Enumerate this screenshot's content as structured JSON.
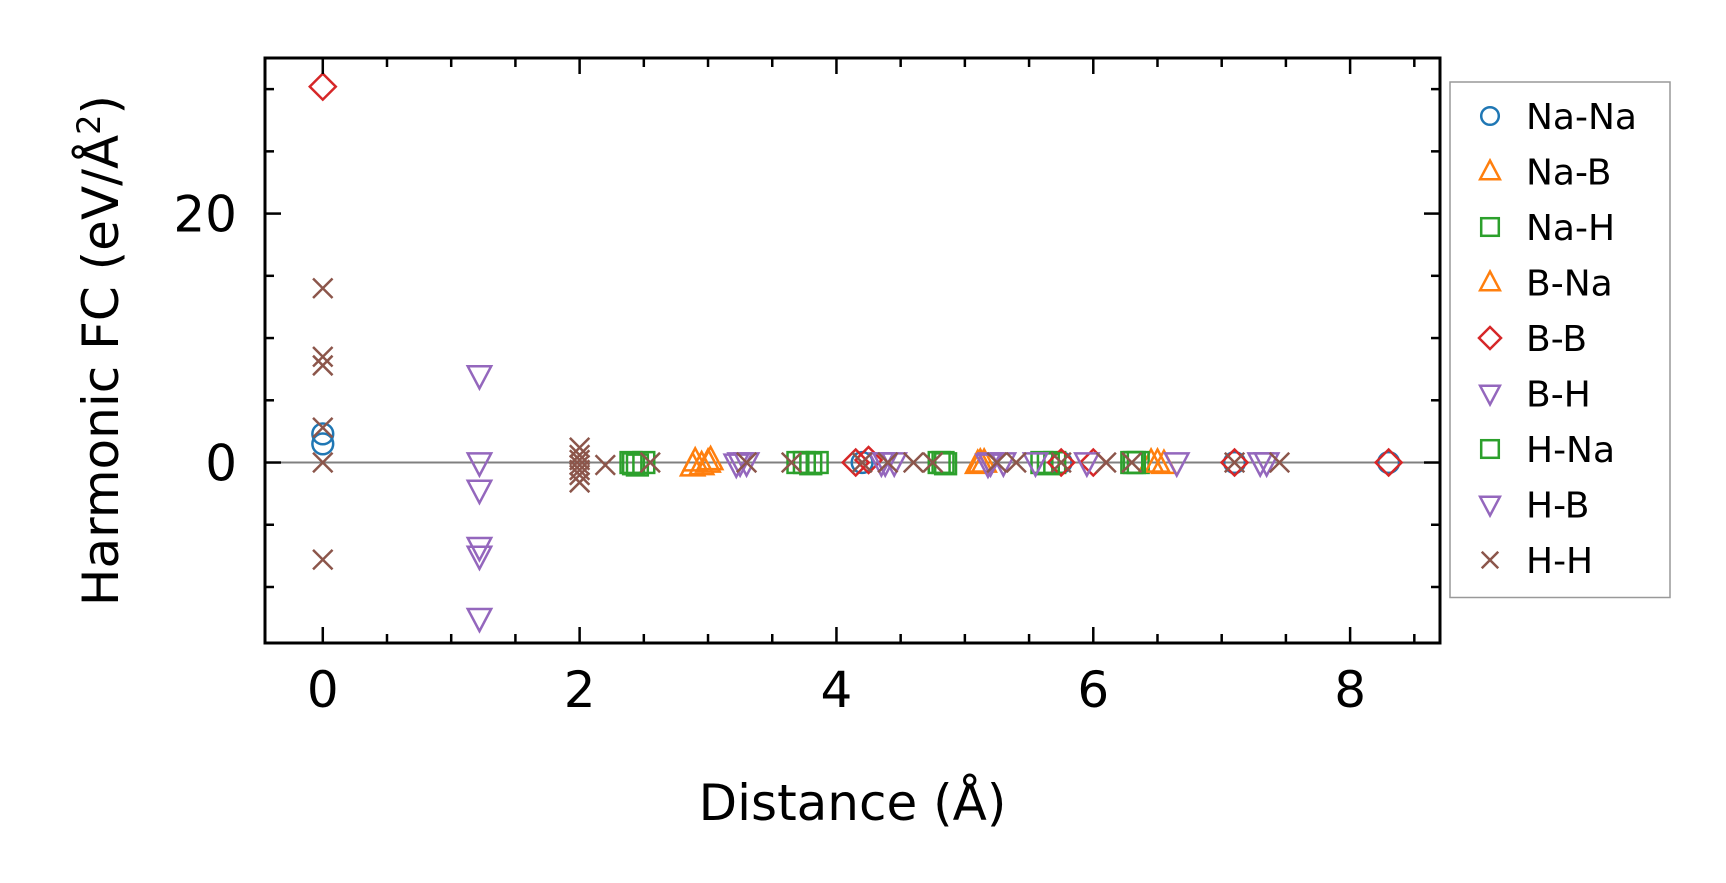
{
  "chart_data": {
    "type": "scatter",
    "title": "",
    "xlabel": "Distance (Å)",
    "ylabel_main": "Harmonic FC (eV/Å",
    "ylabel_sup": "2",
    "ylabel_close": ")",
    "xlim": [
      -0.45,
      8.7
    ],
    "ylim": [
      -14.5,
      32.5
    ],
    "xticks": [
      0,
      2,
      4,
      6,
      8
    ],
    "xtick_labels": [
      "0",
      "2",
      "4",
      "6",
      "8"
    ],
    "yticks": [
      0,
      20
    ],
    "ytick_labels": [
      "0",
      "20"
    ],
    "x_minor_step": 0.5,
    "y_minor_step": 5,
    "zero_line": true,
    "grid": false,
    "legend_position": "outside right",
    "series": [
      {
        "name": "Na-Na",
        "color": "#1f77b4",
        "marker": "circle",
        "x": [
          0,
          0,
          4.2,
          5.75,
          7.1,
          8.3
        ],
        "y": [
          2.3,
          1.5,
          0,
          0,
          0,
          0
        ]
      },
      {
        "name": "Na-B",
        "color": "#ff7f0e",
        "marker": "triangle-up",
        "x": [
          2.9,
          2.95,
          3.0,
          5.1,
          5.15,
          6.45,
          6.55
        ],
        "y": [
          0.1,
          -0.2,
          0.0,
          -0.1,
          0.0,
          0.0,
          -0.1
        ]
      },
      {
        "name": "Na-H",
        "color": "#2ca02c",
        "marker": "square",
        "x": [
          2.4,
          2.45,
          2.5,
          3.7,
          3.8,
          3.85,
          4.8,
          4.85,
          5.6,
          5.7,
          6.3,
          6.35
        ],
        "y": [
          0.0,
          -0.2,
          0.0,
          0.0,
          -0.1,
          0.0,
          0.0,
          -0.1,
          0.0,
          0.0,
          0.0,
          0.0
        ]
      },
      {
        "name": "B-Na",
        "color": "#ff7f0e",
        "marker": "triangle-up",
        "x": [
          2.88,
          3.02,
          5.12,
          6.5
        ],
        "y": [
          -0.3,
          0.2,
          0.0,
          0.0
        ]
      },
      {
        "name": "B-B",
        "color": "#d62728",
        "marker": "diamond",
        "x": [
          0,
          4.15,
          4.25,
          5.75,
          6.0,
          7.1,
          8.3
        ],
        "y": [
          30.2,
          0.0,
          0.2,
          0.0,
          0.0,
          0.0,
          0.0
        ]
      },
      {
        "name": "B-H",
        "color": "#9467bd",
        "marker": "triangle-down",
        "x": [
          1.22,
          1.22,
          1.22,
          1.22,
          1.22,
          1.22,
          3.25,
          3.3,
          4.35,
          4.45,
          5.2,
          5.3,
          6.65,
          7.3
        ],
        "y": [
          7.0,
          0.0,
          -2.2,
          -6.8,
          -7.5,
          -12.5,
          0.0,
          0.0,
          0.0,
          0.0,
          0.0,
          0.0,
          0.0,
          0.0
        ]
      },
      {
        "name": "H-Na",
        "color": "#2ca02c",
        "marker": "square",
        "x": [
          2.42,
          3.75,
          4.83,
          5.65,
          6.32
        ],
        "y": [
          -0.1,
          0.0,
          0.0,
          -0.1,
          0.0
        ]
      },
      {
        "name": "H-B",
        "color": "#9467bd",
        "marker": "triangle-down",
        "x": [
          3.22,
          4.38,
          5.18,
          5.55,
          5.95,
          7.35
        ],
        "y": [
          -0.1,
          0.0,
          -0.1,
          0.0,
          0.0,
          0.0
        ]
      },
      {
        "name": "H-H",
        "color": "#8c564b",
        "marker": "x",
        "x": [
          0,
          0,
          0,
          0,
          0,
          0,
          2.0,
          2.0,
          2.0,
          2.0,
          2.0,
          2.0,
          2.0,
          2.2,
          2.55,
          3.3,
          3.65,
          4.2,
          4.4,
          4.6,
          4.75,
          5.25,
          5.4,
          5.75,
          6.1,
          6.3,
          7.1,
          7.45
        ],
        "y": [
          14.0,
          8.5,
          7.8,
          2.8,
          0.0,
          -7.8,
          1.2,
          0.6,
          0.2,
          -0.2,
          -0.6,
          -1.0,
          -1.6,
          -0.2,
          0.0,
          0.0,
          0.0,
          0.0,
          0.0,
          0.0,
          0.0,
          0.0,
          0.0,
          0.0,
          0.0,
          0.0,
          0.0,
          0.0
        ]
      }
    ]
  }
}
